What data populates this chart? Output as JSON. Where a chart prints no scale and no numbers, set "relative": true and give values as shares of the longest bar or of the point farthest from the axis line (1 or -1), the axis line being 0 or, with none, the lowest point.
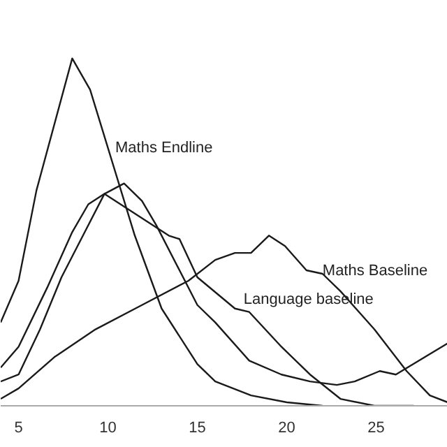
{
  "chart_data": {
    "type": "line",
    "relative": true,
    "xlim": [
      4,
      29
    ],
    "xticks": [
      5,
      10,
      15,
      20,
      25
    ],
    "grid": false,
    "marker": "none",
    "line_style": "solid",
    "series": [
      {
        "name": "Maths Endline",
        "color": "#1a1a1a",
        "x": [
          4,
          5,
          6,
          8,
          9,
          11.5,
          13,
          15,
          16,
          18,
          20,
          22
        ],
        "values": [
          0.24,
          0.36,
          0.62,
          1.0,
          0.91,
          0.49,
          0.28,
          0.12,
          0.07,
          0.03,
          0.01,
          0.0
        ]
      },
      {
        "color": "#1a1a1a",
        "x": [
          4,
          5,
          6.2,
          7.4,
          8.5,
          9.8,
          10.9,
          11.9,
          12.7,
          15,
          16,
          17.9,
          19.7,
          21.3,
          22.8,
          23.8,
          25.2,
          26.1,
          29
        ],
        "values": [
          0.07,
          0.09,
          0.22,
          0.37,
          0.48,
          0.61,
          0.64,
          0.59,
          0.52,
          0.29,
          0.24,
          0.13,
          0.09,
          0.07,
          0.06,
          0.07,
          0.1,
          0.09,
          0.18
        ]
      },
      {
        "name": "Language baseline",
        "color": "#1a1a1a",
        "x": [
          4,
          5,
          6.6,
          8,
          8.9,
          9.8,
          13.4,
          14,
          15,
          17.1,
          17.9,
          19.7,
          21.3,
          23,
          24.9,
          27.1
        ],
        "values": [
          0.11,
          0.17,
          0.34,
          0.5,
          0.58,
          0.61,
          0.49,
          0.48,
          0.37,
          0.28,
          0.27,
          0.17,
          0.09,
          0.02,
          0.0,
          0.0
        ]
      },
      {
        "name": "Maths Baseline",
        "color": "#1a1a1a",
        "x": [
          4,
          5,
          7,
          9.3,
          11.9,
          14.5,
          16,
          17.1,
          18,
          19,
          19.9,
          21.1,
          22,
          23,
          24.9,
          26.7,
          28,
          29
        ],
        "values": [
          0.02,
          0.05,
          0.14,
          0.22,
          0.29,
          0.36,
          0.42,
          0.44,
          0.44,
          0.49,
          0.46,
          0.39,
          0.38,
          0.33,
          0.22,
          0.1,
          0.03,
          0.01
        ]
      }
    ]
  }
}
